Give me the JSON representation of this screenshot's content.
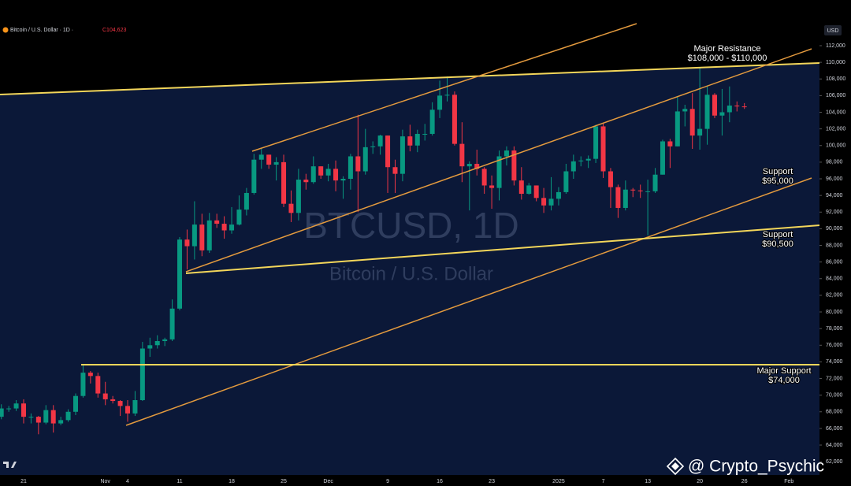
{
  "header": {
    "symbol": "Bitcoin / U.S. Dollar · 1D ·",
    "close": "C104,623"
  },
  "currency": "USD",
  "watermark": {
    "ticker": "BTCUSD, 1D",
    "name": "Bitcoin / U.S. Dollar"
  },
  "credit": "@ Crypto_Psychic",
  "chart_data": {
    "type": "candlestick",
    "up_color": "#089981",
    "down_color": "#f23645",
    "categories": [
      null,
      null,
      null,
      "21",
      null,
      null,
      null,
      null,
      null,
      null,
      null,
      null,
      null,
      null,
      "Nov",
      null,
      null,
      "4",
      null,
      null,
      null,
      null,
      null,
      null,
      "11",
      null,
      null,
      null,
      null,
      null,
      null,
      "18",
      null,
      null,
      null,
      null,
      null,
      null,
      "25",
      null,
      null,
      null,
      null,
      null,
      "Dec",
      null,
      null,
      null,
      null,
      null,
      null,
      null,
      "9",
      null,
      null,
      null,
      null,
      null,
      null,
      "16",
      null,
      null,
      null,
      null,
      null,
      null,
      "23",
      null,
      null,
      null,
      null,
      null,
      null,
      null,
      null,
      "2025",
      null,
      null,
      null,
      null,
      null,
      "7",
      null,
      null,
      null,
      null,
      null,
      "13",
      null,
      null,
      null,
      null,
      null,
      null,
      "20",
      null,
      null,
      null,
      null,
      null,
      "26",
      null,
      null,
      null,
      null,
      null,
      "Feb"
    ],
    "open": [
      67400,
      68400,
      68400,
      69000,
      67400,
      67400,
      66700,
      68200,
      66600,
      67000,
      68000,
      69900,
      72700,
      72300,
      70200,
      69500,
      69300,
      68700,
      67800,
      69400,
      75600,
      76000,
      76500,
      76700,
      80400,
      88700,
      87900,
      90500,
      87400,
      91000,
      90600,
      89800,
      90500,
      92300,
      94300,
      98300,
      98900,
      97700,
      98000,
      93000,
      91900,
      95900,
      95600,
      97500,
      96400,
      97200,
      95800,
      96000,
      98700,
      96900,
      99800,
      99900,
      101200,
      97400,
      96600,
      101100,
      100000,
      101400,
      101400,
      104300,
      106000,
      106100,
      100200,
      97500,
      97800,
      97200,
      95200,
      94900,
      98700,
      99400,
      95800,
      94200,
      95200,
      93700,
      92800,
      93600,
      94400,
      96900,
      98100,
      98200,
      98400,
      102300,
      96900,
      95000,
      92500,
      94700,
      94600,
      94500,
      94500,
      96500,
      100500,
      99900,
      104100,
      104400,
      101200,
      102000,
      106100,
      103600,
      104000,
      104800,
      104700,
      null,
      null,
      null,
      null,
      null,
      null
    ],
    "high": [
      68900,
      68700,
      69400,
      69500,
      67800,
      67500,
      68800,
      68800,
      67400,
      68300,
      70200,
      73600,
      72900,
      72700,
      71600,
      69900,
      69400,
      69400,
      70500,
      76400,
      76900,
      77200,
      76900,
      81500,
      89000,
      89900,
      93300,
      91800,
      91900,
      91800,
      91500,
      92600,
      94000,
      94900,
      99000,
      99600,
      98900,
      98600,
      98900,
      94600,
      97200,
      96600,
      98700,
      97500,
      97800,
      98200,
      96300,
      99000,
      103700,
      102000,
      100500,
      101300,
      101200,
      98300,
      101900,
      102500,
      101900,
      102600,
      105200,
      107800,
      108300,
      106500,
      102800,
      98100,
      99500,
      97400,
      96400,
      99400,
      99900,
      99900,
      97400,
      95500,
      95200,
      94900,
      96200,
      95000,
      97800,
      98900,
      98700,
      98800,
      102500,
      102700,
      97300,
      95300,
      95800,
      94900,
      95300,
      95900,
      97300,
      100700,
      100800,
      105900,
      104900,
      106300,
      109400,
      107200,
      106300,
      106800,
      107100,
      105300,
      105100,
      null,
      null,
      null,
      null,
      null,
      null
    ],
    "low": [
      67100,
      68000,
      68100,
      66600,
      66600,
      65300,
      66500,
      65500,
      66400,
      66800,
      67600,
      69700,
      71400,
      69700,
      68800,
      69000,
      67500,
      66800,
      67500,
      69300,
      74600,
      75600,
      75900,
      76500,
      80200,
      85100,
      86300,
      86700,
      87100,
      90100,
      88800,
      89400,
      90400,
      91600,
      94100,
      97200,
      97200,
      95800,
      92600,
      90800,
      91000,
      94700,
      95400,
      96000,
      95700,
      94500,
      93600,
      94700,
      92000,
      96500,
      99000,
      98900,
      94300,
      94300,
      95700,
      99300,
      99200,
      100600,
      101200,
      103300,
      105300,
      100000,
      95600,
      92200,
      96400,
      94200,
      92400,
      93400,
      97600,
      95200,
      93500,
      94100,
      93300,
      91900,
      92200,
      92800,
      94200,
      96000,
      97500,
      97300,
      97900,
      96100,
      92500,
      91300,
      92200,
      93800,
      93700,
      89200,
      94300,
      96500,
      97300,
      99900,
      102300,
      99600,
      99500,
      100100,
      103300,
      101200,
      102800,
      104100,
      104400,
      null,
      null,
      null,
      null,
      null,
      null
    ],
    "close": [
      68400,
      68400,
      69000,
      67400,
      67400,
      66700,
      68200,
      66600,
      67000,
      68000,
      69900,
      72700,
      72300,
      70200,
      69500,
      69300,
      68700,
      67800,
      69400,
      75600,
      76000,
      76500,
      76700,
      80400,
      88700,
      87900,
      90500,
      87400,
      91000,
      90600,
      89800,
      90500,
      92300,
      94300,
      98300,
      98900,
      97700,
      98000,
      93000,
      91900,
      95900,
      95600,
      97500,
      96400,
      97200,
      95800,
      96000,
      98700,
      96900,
      99800,
      99900,
      101200,
      97400,
      96600,
      101100,
      100000,
      101400,
      101400,
      104300,
      106000,
      106100,
      100200,
      97500,
      97800,
      97200,
      95200,
      94900,
      98700,
      99400,
      95800,
      94200,
      95200,
      93700,
      92800,
      93600,
      94400,
      96900,
      98100,
      98200,
      98400,
      102300,
      96900,
      95000,
      92500,
      94700,
      94600,
      94500,
      94500,
      96500,
      100500,
      99900,
      104100,
      104400,
      101200,
      102000,
      106100,
      103600,
      104000,
      104800,
      104700,
      104623,
      null,
      null,
      null,
      null,
      null,
      null
    ],
    "ylim": [
      60690,
      117490
    ],
    "yticks": [
      {
        "value": 112000,
        "label": "112,000"
      },
      {
        "value": 110000,
        "label": "110,000"
      },
      {
        "value": 108000,
        "label": "108,000"
      },
      {
        "value": 106000,
        "label": "106,000"
      },
      {
        "value": 104000,
        "label": "104,000"
      },
      {
        "value": 102000,
        "label": "102,000"
      },
      {
        "value": 100000,
        "label": "100,000"
      },
      {
        "value": 98000,
        "label": "98,000"
      },
      {
        "value": 96000,
        "label": "96,000"
      },
      {
        "value": 94000,
        "label": "94,000"
      },
      {
        "value": 92000,
        "label": "92,000"
      },
      {
        "value": 90000,
        "label": "90,000"
      },
      {
        "value": 88000,
        "label": "88,000"
      },
      {
        "value": 86000,
        "label": "86,000"
      },
      {
        "value": 84000,
        "label": "84,000"
      },
      {
        "value": 82000,
        "label": "82,000"
      },
      {
        "value": 80000,
        "label": "80,000"
      },
      {
        "value": 78000,
        "label": "78,000"
      },
      {
        "value": 76000,
        "label": "76,000"
      },
      {
        "value": 74000,
        "label": "74,000"
      },
      {
        "value": 72000,
        "label": "72,000"
      },
      {
        "value": 70000,
        "label": "70,000"
      },
      {
        "value": 68000,
        "label": "68,000"
      },
      {
        "value": 66000,
        "label": "66,000"
      },
      {
        "value": 64000,
        "label": "64,000"
      },
      {
        "value": 62000,
        "label": "62,000"
      }
    ],
    "annotations": [
      {
        "title": "Major Resistance",
        "label": "$108,000 - $110,000"
      },
      {
        "title": "Support",
        "label": "$95,000"
      },
      {
        "title": "Support",
        "label": "$90,500"
      },
      {
        "title": "Major Support",
        "label": "$74,000"
      }
    ]
  }
}
